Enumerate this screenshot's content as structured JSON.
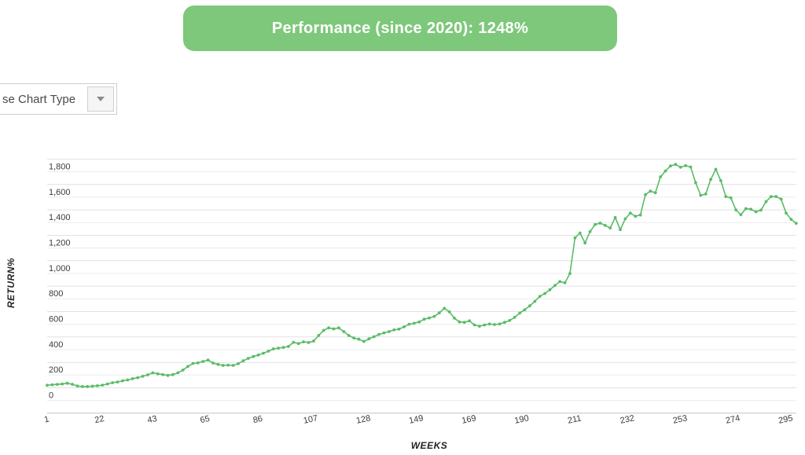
{
  "banner": {
    "label": "Performance (since 2020): 1248%",
    "bg_color": "#7ec87b",
    "text_color": "#ffffff"
  },
  "controls": {
    "chart_type_visible_label": "se Chart Type",
    "dropdown_arrow_icon": "triangle-down"
  },
  "chart_data": {
    "type": "line",
    "title": "",
    "xlabel": "WEEKS",
    "ylabel": "RETURN%",
    "line_color": "#5abc66",
    "marker": "dot",
    "grid": "horizontal-only",
    "grid_step": 100,
    "label_step": 200,
    "legend_position": "none",
    "ylim": [
      -200,
      1800
    ],
    "x_tick_labels": [
      1,
      22,
      43,
      65,
      86,
      107,
      128,
      149,
      169,
      190,
      211,
      232,
      253,
      274,
      295
    ],
    "y_tick_labels": [
      "0",
      "200",
      "400",
      "600",
      "800",
      "1,000",
      "1,200",
      "1,400",
      "1,600",
      "1,800"
    ],
    "series": [
      {
        "x": [
          1,
          3,
          5,
          7,
          9,
          11,
          13,
          15,
          17,
          19,
          21,
          23,
          25,
          27,
          29,
          31,
          33,
          35,
          37,
          39,
          41,
          43,
          45,
          47,
          49,
          51,
          53,
          55,
          57,
          59,
          61,
          63,
          65,
          67,
          69,
          71,
          73,
          75,
          77,
          79,
          81,
          83,
          85,
          87,
          89,
          91,
          93,
          95,
          97,
          99,
          101,
          103,
          105,
          107,
          109,
          111,
          113,
          115,
          117,
          119,
          121,
          123,
          125,
          127,
          129,
          131,
          133,
          135,
          137,
          139,
          141,
          143,
          145,
          147,
          149,
          151,
          153,
          155,
          157,
          159,
          161,
          163,
          165,
          167,
          169,
          171,
          173,
          175,
          177,
          179,
          181,
          183,
          185,
          187,
          189,
          191,
          193,
          195,
          197,
          199,
          201,
          203,
          205,
          207,
          209,
          211,
          213,
          215,
          217,
          219,
          221,
          223,
          225,
          227,
          229,
          231,
          233,
          235,
          237,
          239,
          241,
          243,
          245,
          247,
          249,
          251,
          253,
          255,
          257,
          259,
          261,
          263,
          265,
          267,
          269,
          271,
          273,
          275,
          277,
          279,
          281,
          283,
          285,
          287,
          289,
          291,
          293,
          295,
          297,
          299
        ],
        "y": [
          20,
          24,
          27,
          30,
          36,
          28,
          14,
          10,
          10,
          13,
          16,
          21,
          30,
          40,
          46,
          55,
          62,
          72,
          80,
          90,
          102,
          118,
          110,
          104,
          98,
          104,
          118,
          140,
          168,
          192,
          196,
          207,
          218,
          195,
          184,
          176,
          179,
          176,
          190,
          212,
          232,
          246,
          258,
          272,
          288,
          306,
          312,
          318,
          325,
          358,
          348,
          362,
          356,
          368,
          412,
          452,
          472,
          464,
          472,
          442,
          412,
          392,
          382,
          365,
          385,
          402,
          420,
          432,
          442,
          456,
          462,
          480,
          500,
          508,
          518,
          540,
          550,
          562,
          590,
          625,
          598,
          548,
          518,
          515,
          527,
          495,
          485,
          495,
          502,
          498,
          502,
          515,
          530,
          555,
          588,
          615,
          645,
          680,
          720,
          742,
          772,
          805,
          836,
          826,
          900,
          1180,
          1218,
          1140,
          1230,
          1285,
          1296,
          1278,
          1258,
          1340,
          1245,
          1330,
          1375,
          1350,
          1360,
          1520,
          1548,
          1535,
          1660,
          1706,
          1746,
          1758,
          1736,
          1748,
          1738,
          1615,
          1515,
          1525,
          1640,
          1720,
          1630,
          1505,
          1495,
          1400,
          1362,
          1410,
          1405,
          1385,
          1398,
          1465,
          1505,
          1505,
          1485,
          1375,
          1325,
          1295
        ]
      }
    ]
  }
}
